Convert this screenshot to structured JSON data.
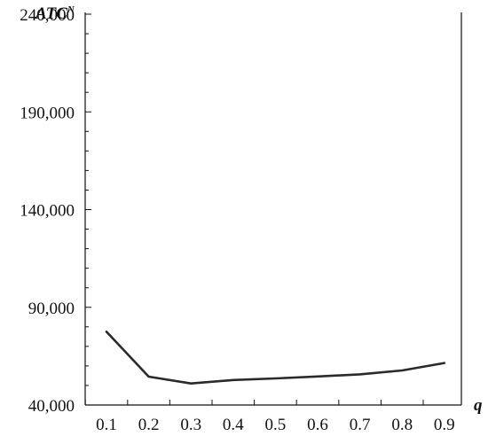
{
  "chart_data": {
    "type": "line",
    "title": "",
    "ylabel_main": "ATC",
    "ylabel_superscript": "N",
    "xlabel": "q",
    "x": [
      0.1,
      0.2,
      0.3,
      0.4,
      0.5,
      0.6,
      0.7,
      0.8,
      0.9
    ],
    "x_tick_labels": [
      "0.1",
      "0.2",
      "0.3",
      "0.4",
      "0.5",
      "0.6",
      "0.7",
      "0.8",
      "0.9"
    ],
    "y_ticks": [
      40000,
      90000,
      140000,
      190000,
      240000
    ],
    "y_tick_labels": [
      "40,000",
      "90,000",
      "140,000",
      "190,000",
      "240,000"
    ],
    "ylim": [
      40000,
      240000
    ],
    "grid": false,
    "series": [
      {
        "values": [
          77500,
          54500,
          51000,
          52800,
          53600,
          54600,
          55700,
          57700,
          61500
        ],
        "color": "#2a2a2a"
      }
    ]
  }
}
